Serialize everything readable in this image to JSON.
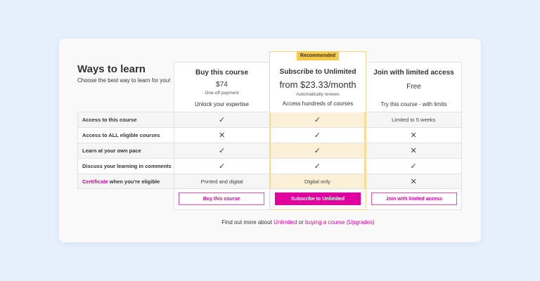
{
  "heading": {
    "title": "Ways to learn",
    "subtitle": "Choose the best way to learn for you!"
  },
  "plans": [
    {
      "name": "Buy this course",
      "price": "$74",
      "note": "One-off payment",
      "tagline": "Unlock your expertise",
      "button": "Buy this course"
    },
    {
      "badge": "Recommended",
      "name": "Subscribe to Unlimited",
      "price": "from $23.33/month",
      "note": "Automatically renews",
      "tagline": "Access hundreds of courses",
      "button": "Subscribe to Unlimited"
    },
    {
      "name": "Join with limited access",
      "price": "Free",
      "tagline": "Try this course - with limits",
      "button": "Join with limited access"
    }
  ],
  "features": [
    {
      "label": "Access to this course",
      "values": [
        "check",
        "check",
        "Limited to 5 weeks"
      ]
    },
    {
      "label": "Access to ALL eligible courses",
      "values": [
        "cross",
        "check",
        "cross"
      ]
    },
    {
      "label": "Learn at your own pace",
      "values": [
        "check",
        "check",
        "cross"
      ]
    },
    {
      "label": "Discuss your learning in comments",
      "values": [
        "check",
        "check",
        "check"
      ]
    },
    {
      "label_link": "Certificate",
      "label": " when you're eligible",
      "values": [
        "Printed and digital",
        "Digital only",
        "cross"
      ]
    }
  ],
  "footer": {
    "prefix": "Find out more about ",
    "link1": "Unlimited",
    "mid": " or ",
    "link2": "buying a course (Upgrades)"
  },
  "colors": {
    "accent": "#e0009e",
    "badge": "#f7c948",
    "highlight": "#fcf0d9"
  }
}
